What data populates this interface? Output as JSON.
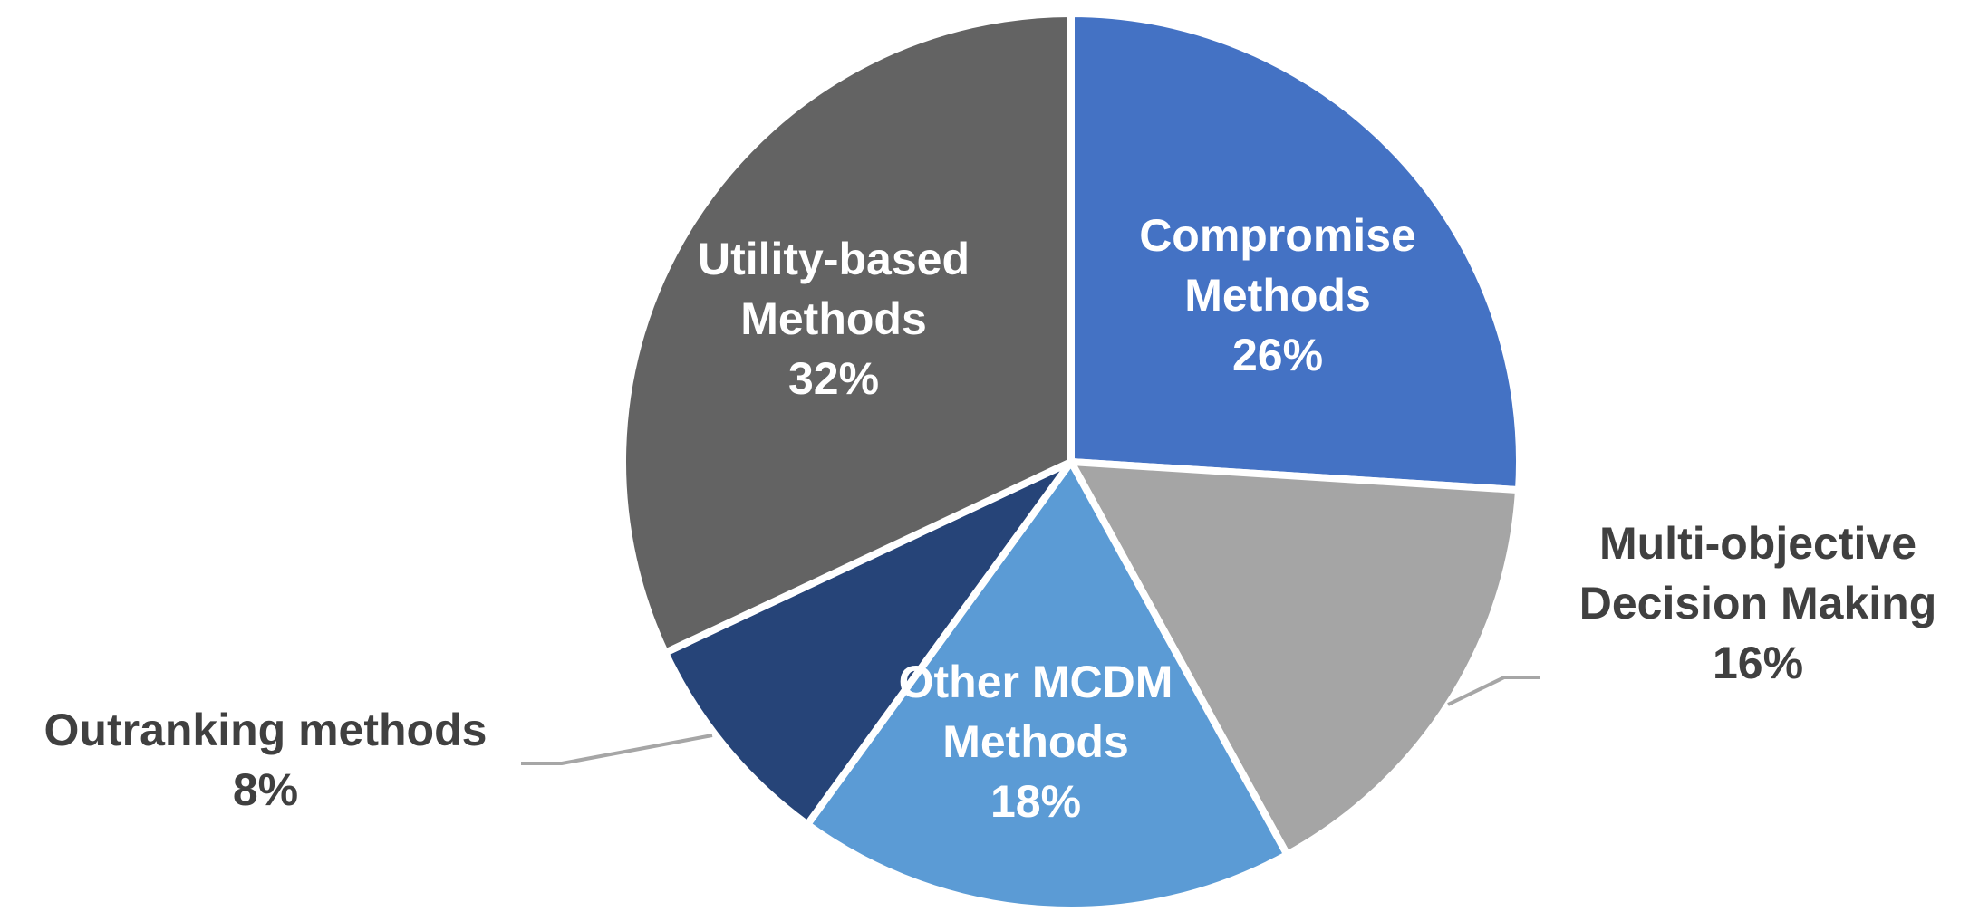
{
  "chart_data": {
    "type": "pie",
    "start_angle_deg": 0,
    "direction": "clockwise",
    "slices": [
      {
        "name": "Compromise Methods",
        "lines": [
          "Compromise",
          "Methods"
        ],
        "value": 26,
        "pct_label": "26%",
        "color": "#4472C4",
        "label_position": "inside"
      },
      {
        "name": "Multi-objective Decision Making",
        "lines": [
          "Multi-objective",
          "Decision Making"
        ],
        "value": 16,
        "pct_label": "16%",
        "color": "#A5A5A5",
        "label_position": "outside"
      },
      {
        "name": "Other MCDM Methods",
        "lines": [
          "Other MCDM",
          "Methods"
        ],
        "value": 18,
        "pct_label": "18%",
        "color": "#5B9BD5",
        "label_position": "inside"
      },
      {
        "name": "Outranking methods",
        "lines": [
          "Outranking methods"
        ],
        "value": 8,
        "pct_label": "8%",
        "color": "#264478",
        "label_position": "outside"
      },
      {
        "name": "Utility-based Methods",
        "lines": [
          "Utility-based",
          "Methods"
        ],
        "value": 32,
        "pct_label": "32%",
        "color": "#636363",
        "label_position": "inside"
      }
    ]
  }
}
